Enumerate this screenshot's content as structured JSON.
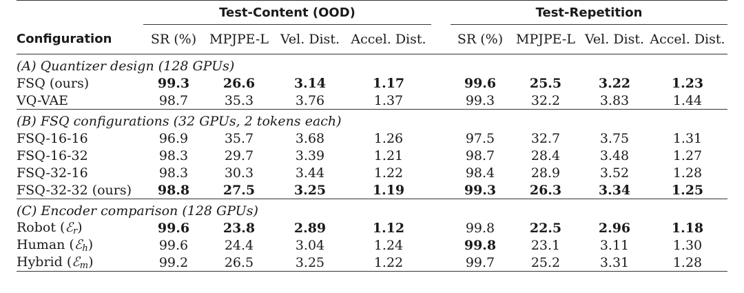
{
  "header": {
    "group_ood": "Test-Content (OOD)",
    "group_rep": "Test-Repetition",
    "configuration": "Configuration",
    "columns": [
      "SR (%)",
      "MPJPE-L",
      "Vel. Dist.",
      "Accel. Dist."
    ]
  },
  "sections": [
    {
      "title": "(A) Quantizer design (128 GPUs)",
      "rows": [
        {
          "name": "FSQ (ours)",
          "ood": [
            "99.3",
            "26.6",
            "3.14",
            "1.17"
          ],
          "rep": [
            "99.6",
            "25.5",
            "3.22",
            "1.23"
          ],
          "bold_ood": [
            true,
            true,
            true,
            true
          ],
          "bold_rep": [
            true,
            true,
            true,
            true
          ]
        },
        {
          "name": "VQ-VAE",
          "ood": [
            "98.7",
            "35.3",
            "3.76",
            "1.37"
          ],
          "rep": [
            "99.3",
            "32.2",
            "3.83",
            "1.44"
          ],
          "bold_ood": [
            false,
            false,
            false,
            false
          ],
          "bold_rep": [
            false,
            false,
            false,
            false
          ]
        }
      ]
    },
    {
      "title": "(B) FSQ configurations (32 GPUs, 2 tokens each)",
      "rows": [
        {
          "name": "FSQ-16-16",
          "ood": [
            "96.9",
            "35.7",
            "3.68",
            "1.26"
          ],
          "rep": [
            "97.5",
            "32.7",
            "3.75",
            "1.31"
          ],
          "bold_ood": [
            false,
            false,
            false,
            false
          ],
          "bold_rep": [
            false,
            false,
            false,
            false
          ]
        },
        {
          "name": "FSQ-16-32",
          "ood": [
            "98.3",
            "29.7",
            "3.39",
            "1.21"
          ],
          "rep": [
            "98.7",
            "28.4",
            "3.48",
            "1.27"
          ],
          "bold_ood": [
            false,
            false,
            false,
            false
          ],
          "bold_rep": [
            false,
            false,
            false,
            false
          ]
        },
        {
          "name": "FSQ-32-16",
          "ood": [
            "98.3",
            "30.3",
            "3.44",
            "1.22"
          ],
          "rep": [
            "98.4",
            "28.9",
            "3.52",
            "1.28"
          ],
          "bold_ood": [
            false,
            false,
            false,
            false
          ],
          "bold_rep": [
            false,
            false,
            false,
            false
          ]
        },
        {
          "name": "FSQ-32-32 (ours)",
          "ood": [
            "98.8",
            "27.5",
            "3.25",
            "1.19"
          ],
          "rep": [
            "99.3",
            "26.3",
            "3.34",
            "1.25"
          ],
          "bold_ood": [
            true,
            true,
            true,
            true
          ],
          "bold_rep": [
            true,
            true,
            true,
            true
          ]
        }
      ]
    },
    {
      "title": "(C) Encoder comparison (128 GPUs)",
      "rows": [
        {
          "name": "Robot",
          "symbol": "ℰ",
          "sub": "r",
          "ood": [
            "99.6",
            "23.8",
            "2.89",
            "1.12"
          ],
          "rep": [
            "99.8",
            "22.5",
            "2.96",
            "1.18"
          ],
          "bold_ood": [
            true,
            true,
            true,
            true
          ],
          "bold_rep": [
            false,
            true,
            true,
            true
          ]
        },
        {
          "name": "Human",
          "symbol": "ℰ",
          "sub": "h",
          "ood": [
            "99.6",
            "24.4",
            "3.04",
            "1.24"
          ],
          "rep": [
            "99.8",
            "23.1",
            "3.11",
            "1.30"
          ],
          "bold_ood": [
            false,
            false,
            false,
            false
          ],
          "bold_rep": [
            true,
            false,
            false,
            false
          ]
        },
        {
          "name": "Hybrid",
          "symbol": "ℰ",
          "sub": "m",
          "ood": [
            "99.2",
            "26.5",
            "3.25",
            "1.22"
          ],
          "rep": [
            "99.7",
            "25.2",
            "3.31",
            "1.28"
          ],
          "bold_ood": [
            false,
            false,
            false,
            false
          ],
          "bold_rep": [
            false,
            false,
            false,
            false
          ]
        }
      ]
    }
  ]
}
